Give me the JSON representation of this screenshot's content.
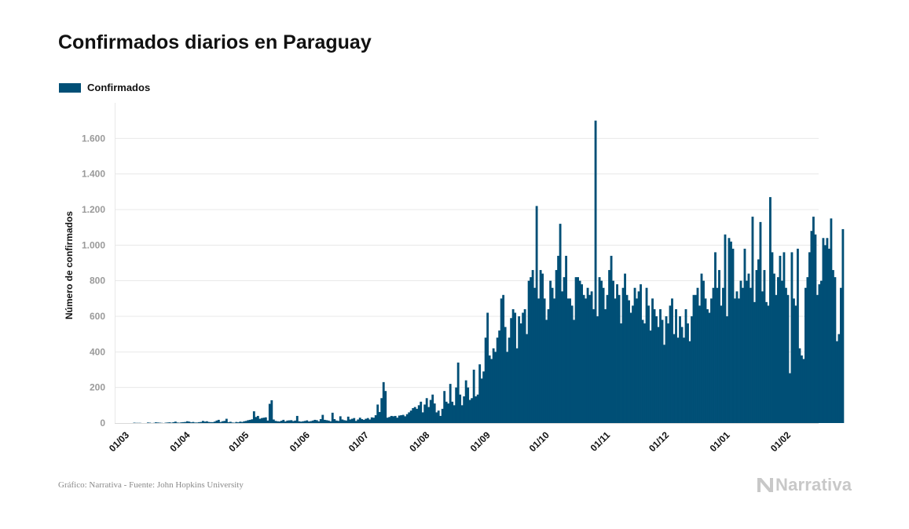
{
  "title": "Confirmados diarios en Paraguay",
  "legend": {
    "label": "Confirmados",
    "color": "#004f76"
  },
  "source_text": "Gráfico: Narrativa - Fuente: John Hopkins University",
  "logo_text": "Narrativa",
  "chart_data": {
    "type": "bar",
    "title": "Confirmados diarios en Paraguay",
    "xlabel": "",
    "ylabel": "Número de confirmados",
    "ylim": [
      0,
      1800
    ],
    "yticks": [
      0,
      200,
      400,
      600,
      800,
      1000,
      1200,
      1400,
      1600
    ],
    "ytick_labels": [
      "0",
      "200",
      "400",
      "600",
      "800",
      "1.000",
      "1.200",
      "1.400",
      "1.600"
    ],
    "x_start": "2020-03-01",
    "xlim_days": [
      0,
      341
    ],
    "xticks": [
      {
        "label": "01/03",
        "day": 0
      },
      {
        "label": "01/04",
        "day": 31
      },
      {
        "label": "01/05",
        "day": 61
      },
      {
        "label": "01/06",
        "day": 92
      },
      {
        "label": "01/07",
        "day": 122
      },
      {
        "label": "01/08",
        "day": 153
      },
      {
        "label": "01/09",
        "day": 184
      },
      {
        "label": "01/10",
        "day": 214
      },
      {
        "label": "01/11",
        "day": 245
      },
      {
        "label": "01/12",
        "day": 275
      },
      {
        "label": "01/01",
        "day": 306
      },
      {
        "label": "01/02",
        "day": 337
      }
    ],
    "grid": true,
    "legend_position": "top-left",
    "series": [
      {
        "name": "Confirmados",
        "color": "#004f76",
        "values": [
          0,
          0,
          0,
          0,
          0,
          2,
          1,
          1,
          1,
          0,
          0,
          0,
          3,
          2,
          0,
          1,
          4,
          3,
          2,
          1,
          0,
          2,
          3,
          4,
          2,
          5,
          8,
          3,
          2,
          4,
          5,
          6,
          10,
          8,
          4,
          6,
          3,
          3,
          5,
          6,
          12,
          8,
          10,
          6,
          5,
          5,
          8,
          14,
          18,
          6,
          10,
          12,
          24,
          5,
          7,
          3,
          2,
          6,
          4,
          8,
          6,
          10,
          12,
          16,
          18,
          21,
          66,
          34,
          40,
          24,
          28,
          30,
          32,
          14,
          108,
          128,
          20,
          12,
          10,
          9,
          13,
          18,
          9,
          14,
          15,
          16,
          11,
          14,
          40,
          10,
          8,
          10,
          12,
          15,
          9,
          11,
          14,
          18,
          16,
          10,
          22,
          46,
          18,
          16,
          14,
          10,
          58,
          22,
          14,
          12,
          38,
          20,
          16,
          14,
          36,
          20,
          24,
          28,
          12,
          20,
          30,
          22,
          18,
          24,
          28,
          20,
          32,
          30,
          44,
          104,
          62,
          140,
          230,
          180,
          30,
          34,
          40,
          38,
          40,
          30,
          42,
          44,
          46,
          38,
          50,
          60,
          70,
          84,
          90,
          80,
          100,
          120,
          60,
          104,
          140,
          90,
          130,
          160,
          110,
          60,
          70,
          40,
          80,
          180,
          120,
          110,
          220,
          120,
          100,
          200,
          340,
          160,
          100,
          150,
          240,
          200,
          130,
          140,
          300,
          150,
          160,
          330,
          250,
          290,
          480,
          620,
          380,
          360,
          420,
          400,
          480,
          520,
          700,
          720,
          540,
          400,
          480,
          590,
          640,
          620,
          420,
          600,
          560,
          620,
          640,
          500,
          800,
          820,
          860,
          760,
          1220,
          700,
          860,
          840,
          700,
          580,
          640,
          800,
          760,
          700,
          860,
          940,
          1120,
          740,
          820,
          940,
          700,
          700,
          660,
          580,
          820,
          820,
          800,
          780,
          720,
          700,
          760,
          720,
          740,
          640,
          1700,
          600,
          820,
          800,
          760,
          640,
          720,
          860,
          940,
          800,
          700,
          780,
          720,
          560,
          760,
          840,
          720,
          690,
          620,
          660,
          760,
          700,
          740,
          780,
          580,
          560,
          760,
          660,
          520,
          700,
          640,
          600,
          540,
          640,
          580,
          440,
          600,
          560,
          660,
          700,
          500,
          640,
          480,
          600,
          540,
          480,
          640,
          560,
          460,
          600,
          720,
          720,
          760,
          660,
          840,
          800,
          700,
          640,
          620,
          700,
          760,
          960,
          760,
          860,
          660,
          760,
          1060,
          600,
          1040,
          1020,
          980,
          700,
          740,
          700,
          800,
          760,
          980,
          800,
          840,
          760,
          1160,
          680,
          860,
          920,
          1130,
          740,
          860,
          680,
          660,
          1270,
          960,
          840,
          720,
          820,
          940,
          800,
          960,
          760,
          720,
          280,
          960,
          700,
          660,
          980,
          420,
          380,
          360,
          760,
          820,
          960,
          1080,
          1160,
          1060,
          720,
          780,
          800,
          1040,
          1000,
          1040,
          980,
          1150,
          860,
          820,
          460,
          500,
          760,
          1090
        ]
      }
    ]
  }
}
